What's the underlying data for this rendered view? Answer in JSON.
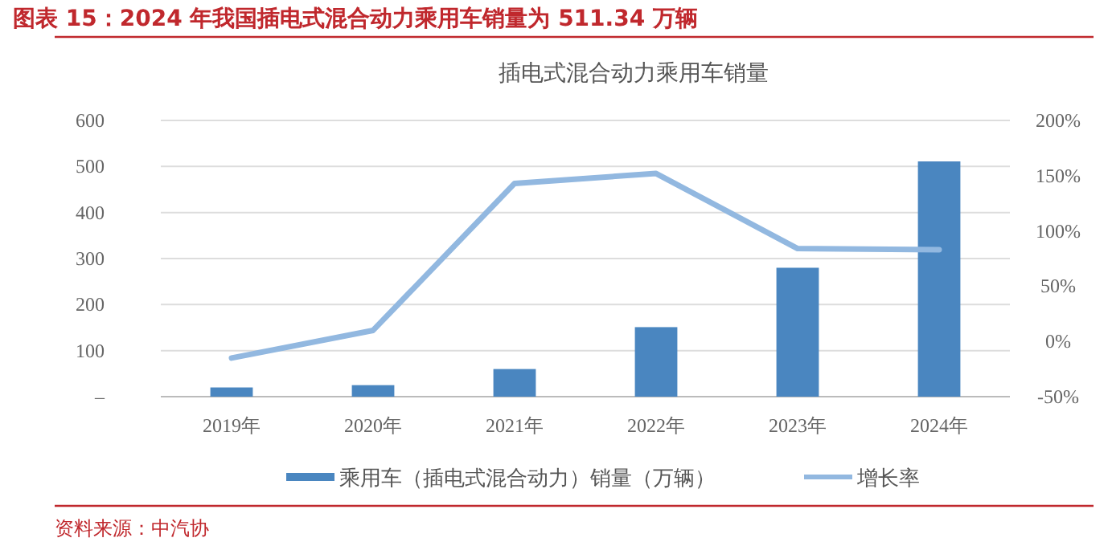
{
  "chart_data": {
    "type": "bar",
    "title": "图表 15：2024 年我国插电式混合动力乘用车销量为 511.34 万辆",
    "subtitle": "插电式混合动力乘用车销量",
    "categories": [
      "2019年",
      "2020年",
      "2021年",
      "2022年",
      "2023年",
      "2024年"
    ],
    "series": [
      {
        "name": "乘用车（插电式混合动力）销量（万辆）",
        "color": "#4a86c0",
        "values": [
          20,
          25,
          60,
          151,
          280,
          511
        ]
      },
      {
        "name": "增长率",
        "type": "line",
        "axis": "y2",
        "color": "#92b8e0",
        "values": [
          -15,
          10,
          143,
          152,
          84,
          83
        ]
      }
    ],
    "ylim": [
      0,
      600
    ],
    "yticks": [
      {
        "value": 0,
        "label": "–"
      },
      100,
      200,
      300,
      400,
      500,
      600
    ],
    "y2lim": [
      -50,
      200
    ],
    "y2ticks": [
      {
        "value": -50,
        "label": "-50%"
      },
      {
        "value": 0,
        "label": "0%"
      },
      {
        "value": 50,
        "label": "50%"
      },
      {
        "value": 100,
        "label": "100%"
      },
      {
        "value": 150,
        "label": "150%"
      },
      {
        "value": 200,
        "label": "200%"
      }
    ],
    "grid": "y",
    "legend": "bottom",
    "marker": "none",
    "annotations": [
      "资料来源：中汽协"
    ]
  }
}
